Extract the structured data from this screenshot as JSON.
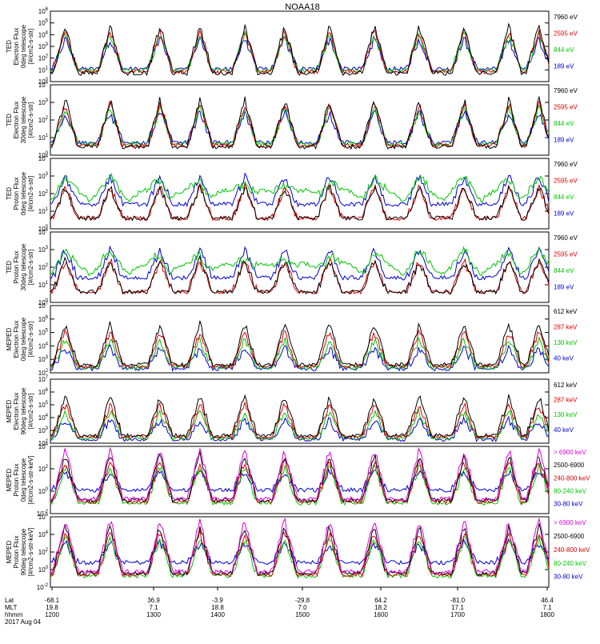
{
  "chart_data": {
    "type": "line",
    "title": "NOAA18",
    "date_label": "2017 Aug 04",
    "x_rows": [
      {
        "label": "Lat",
        "values": [
          "-68.1",
          "36.9",
          "-3.9",
          "-29.8",
          "64.2",
          "-81.0",
          "46.4"
        ]
      },
      {
        "label": "MLT",
        "values": [
          "19.8",
          "7.1",
          "18.8",
          "7.0",
          "18.2",
          "17.1",
          "7.1"
        ]
      },
      {
        "label": "hhmm",
        "values": [
          "1200",
          "1300",
          "1400",
          "1500",
          "1600",
          "1700",
          "1800"
        ]
      }
    ],
    "panels": [
      {
        "ylabel": [
          "TED",
          "Electron Flux",
          "0deg telescope",
          "[#/cm2-s-str]"
        ],
        "ytick_labels": [
          "10^0",
          "10^1",
          "10^2",
          "10^3",
          "10^4",
          "10^5",
          "10^6"
        ],
        "series": [
          {
            "name": "7960 eV",
            "color": "#000000"
          },
          {
            "name": "2595 eV",
            "color": "#e00000"
          },
          {
            "name": "844 eV",
            "color": "#00c800"
          },
          {
            "name": "189 eV",
            "color": "#0000dd"
          }
        ]
      },
      {
        "ylabel": [
          "TED",
          "Electron Flux",
          "30deg telescope",
          "[#/cm2-s-str]"
        ],
        "ytick_labels": [
          "10^0",
          "10^1",
          "10^2",
          "10^3",
          "10^4"
        ],
        "series": [
          {
            "name": "7960 eV",
            "color": "#000000"
          },
          {
            "name": "2595 eV",
            "color": "#e00000"
          },
          {
            "name": "844 eV",
            "color": "#00c800"
          },
          {
            "name": "189 eV",
            "color": "#0000dd"
          }
        ]
      },
      {
        "ylabel": [
          "TED",
          "Proton Flux",
          "0deg telescope",
          "[#/cm2-s-str]"
        ],
        "ytick_labels": [
          "10^0",
          "10^1",
          "10^2",
          "10^3",
          "10^4"
        ],
        "series": [
          {
            "name": "7960 eV",
            "color": "#000000"
          },
          {
            "name": "2595 eV",
            "color": "#e00000"
          },
          {
            "name": "844 eV",
            "color": "#00c800"
          },
          {
            "name": "189 eV",
            "color": "#0000dd"
          }
        ]
      },
      {
        "ylabel": [
          "TED",
          "Proton Flux",
          "30deg telescope",
          "[#/cm2-s-str]"
        ],
        "ytick_labels": [
          "10^0",
          "10^1",
          "10^2",
          "10^3",
          "10^4"
        ],
        "series": [
          {
            "name": "7960 eV",
            "color": "#000000"
          },
          {
            "name": "2595 eV",
            "color": "#e00000"
          },
          {
            "name": "844 eV",
            "color": "#00c800"
          },
          {
            "name": "189 eV",
            "color": "#0000dd"
          }
        ]
      },
      {
        "ylabel": [
          "MEPED",
          "Electron Flux",
          "0deg telescope",
          "[#/cm2-s-str]"
        ],
        "ytick_labels": [
          "10^2",
          "10^3",
          "10^4",
          "10^5",
          "10^6",
          "10^7"
        ],
        "series": [
          {
            "name": "612 keV",
            "color": "#000000"
          },
          {
            "name": "287 keV",
            "color": "#e00000"
          },
          {
            "name": "130 keV",
            "color": "#00c800"
          },
          {
            "name": "40 keV",
            "color": "#0000dd"
          }
        ]
      },
      {
        "ylabel": [
          "MEPED",
          "Electron Flux",
          "90deg telescope",
          "[#/cm2-s-str]"
        ],
        "ytick_labels": [
          "10^2",
          "10^3",
          "10^4",
          "10^5",
          "10^6",
          "10^7"
        ],
        "series": [
          {
            "name": "612 keV",
            "color": "#000000"
          },
          {
            "name": "287 keV",
            "color": "#e00000"
          },
          {
            "name": "130 keV",
            "color": "#00c800"
          },
          {
            "name": "40 keV",
            "color": "#0000dd"
          }
        ]
      },
      {
        "ylabel": [
          "MEPED",
          "Proton Flux",
          "0deg telescope",
          "[#/cm2-s-str-keV]"
        ],
        "ytick_labels": [
          "10^-2",
          "10^0",
          "10^2",
          "10^4"
        ],
        "series": [
          {
            "name": "> 6900 keV",
            "color": "#dd00dd"
          },
          {
            "name": "2500-6900",
            "color": "#000000"
          },
          {
            "name": "240-800 keV",
            "color": "#e00000"
          },
          {
            "name": "80-240 keV",
            "color": "#00c800"
          },
          {
            "name": "30-80 keV",
            "color": "#0000dd"
          }
        ]
      },
      {
        "ylabel": [
          "MEPED",
          "Proton Flux",
          "90deg telescope",
          "[#/cm2-s-str-keV]"
        ],
        "ytick_labels": [
          "10^-2",
          "10^0",
          "10^2",
          "10^4",
          "10^6"
        ],
        "series": [
          {
            "name": "> 6900 keV",
            "color": "#dd00dd"
          },
          {
            "name": "2500-6900",
            "color": "#000000"
          },
          {
            "name": "240-800 keV",
            "color": "#e00000"
          },
          {
            "name": "80-240 keV",
            "color": "#00c800"
          },
          {
            "name": "30-80 keV",
            "color": "#0000dd"
          }
        ]
      }
    ]
  }
}
